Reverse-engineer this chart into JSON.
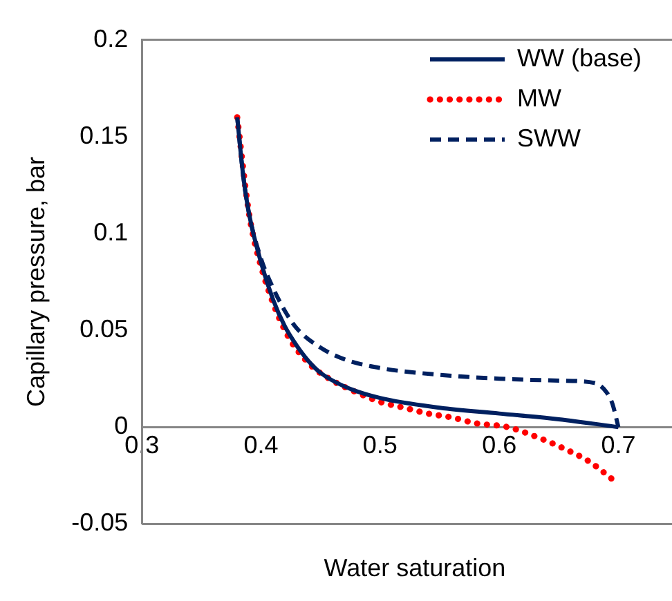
{
  "chart_data": {
    "type": "line",
    "xlabel": "Water saturation",
    "ylabel": "Capillary pressure, bar",
    "xlim": [
      0.3,
      0.745
    ],
    "xticks": [
      0.3,
      0.4,
      0.5,
      0.6,
      0.7
    ],
    "ylim": [
      -0.05,
      0.2
    ],
    "yticks": [
      -0.05,
      0,
      0.05,
      0.1,
      0.15,
      0.2
    ],
    "grid": false,
    "legend": "top right",
    "marker": "none",
    "series": [
      {
        "name": "WW (base)",
        "color": "#002060",
        "line_style": "solid",
        "x": [
          0.38,
          0.385,
          0.39,
          0.4,
          0.41,
          0.42,
          0.43,
          0.44,
          0.45,
          0.47,
          0.5,
          0.55,
          0.6,
          0.65,
          0.7
        ],
        "values": [
          0.16,
          0.13,
          0.11,
          0.085,
          0.066,
          0.052,
          0.042,
          0.034,
          0.028,
          0.021,
          0.015,
          0.01,
          0.007,
          0.004,
          0.0
        ]
      },
      {
        "name": "MW",
        "color": "#ff0000",
        "line_style": "dotted",
        "x": [
          0.38,
          0.39,
          0.4,
          0.42,
          0.44,
          0.46,
          0.48,
          0.5,
          0.52,
          0.54,
          0.56,
          0.58,
          0.607,
          0.631,
          0.654,
          0.676,
          0.695
        ],
        "values": [
          0.16,
          0.11,
          0.083,
          0.05,
          0.033,
          0.024,
          0.018,
          0.013,
          0.01,
          0.007,
          0.005,
          0.002,
          0.0,
          -0.005,
          -0.011,
          -0.018,
          -0.027
        ]
      },
      {
        "name": "SWW",
        "color": "#002060",
        "line_style": "dashed",
        "x": [
          0.38,
          0.385,
          0.39,
          0.4,
          0.41,
          0.42,
          0.43,
          0.45,
          0.47,
          0.5,
          0.55,
          0.6,
          0.65,
          0.68,
          0.69,
          0.695,
          0.7
        ],
        "values": [
          0.16,
          0.13,
          0.11,
          0.087,
          0.072,
          0.06,
          0.051,
          0.041,
          0.035,
          0.0305,
          0.027,
          0.025,
          0.024,
          0.0228,
          0.018,
          0.012,
          0.0
        ]
      }
    ]
  }
}
